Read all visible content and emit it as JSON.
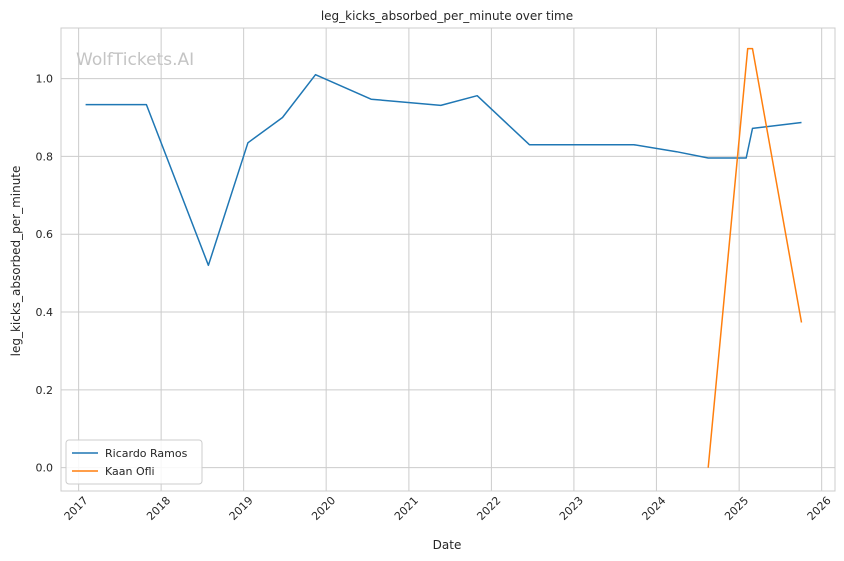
{
  "watermark": "WolfTickets.AI",
  "chart_data": {
    "type": "line",
    "title": "leg_kicks_absorbed_per_minute over time",
    "xlabel": "Date",
    "ylabel": "leg_kicks_absorbed_per_minute",
    "x_ticks": [
      "2017",
      "2018",
      "2019",
      "2020",
      "2021",
      "2022",
      "2023",
      "2024",
      "2025",
      "2026"
    ],
    "y_ticks": [
      "0.0",
      "0.2",
      "0.4",
      "0.6",
      "0.8",
      "1.0"
    ],
    "xlim": [
      "2016-10-15",
      "2026-03-01"
    ],
    "ylim": [
      -0.06,
      1.13
    ],
    "grid": true,
    "legend_position": "lower-left",
    "series": [
      {
        "name": "Ricardo Ramos",
        "color": "#1f77b4",
        "points": [
          [
            "2017-02-01",
            0.933
          ],
          [
            "2017-10-28",
            0.933
          ],
          [
            "2018-07-29",
            0.52
          ],
          [
            "2019-01-20",
            0.835
          ],
          [
            "2019-06-22",
            0.9
          ],
          [
            "2019-11-15",
            1.01
          ],
          [
            "2020-07-18",
            0.947
          ],
          [
            "2021-05-22",
            0.931
          ],
          [
            "2021-10-30",
            0.956
          ],
          [
            "2022-06-18",
            0.83
          ],
          [
            "2023-09-23",
            0.83
          ],
          [
            "2024-03-30",
            0.812
          ],
          [
            "2024-08-17",
            0.796
          ],
          [
            "2025-02-01",
            0.796
          ],
          [
            "2025-03-01",
            0.872
          ],
          [
            "2025-10-04",
            0.887
          ]
        ]
      },
      {
        "name": "Kaan Ofli",
        "color": "#ff7f0e",
        "points": [
          [
            "2024-08-17",
            0.0
          ],
          [
            "2025-02-08",
            1.077
          ],
          [
            "2025-03-01",
            1.077
          ],
          [
            "2025-10-04",
            0.373
          ]
        ]
      }
    ]
  }
}
